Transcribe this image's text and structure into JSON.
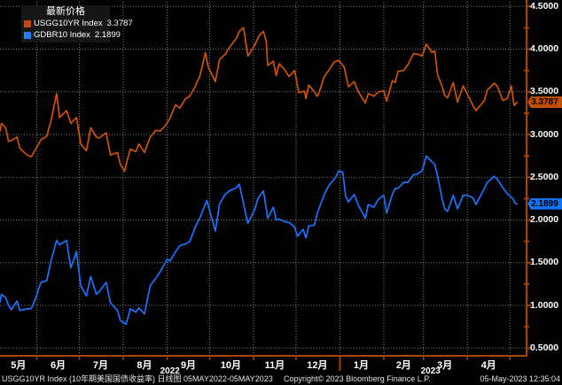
{
  "window": {
    "background": "#000000"
  },
  "legend": {
    "title": "最新价格",
    "items": [
      {
        "label": "USGG10YR Index",
        "value": "3.3787",
        "color": "#c44a04"
      },
      {
        "label": "GDBR10 Index",
        "value": "2.1899",
        "color": "#1e80ff"
      }
    ]
  },
  "footer": {
    "left": "USGG10YR Index (10年期美国国债收益率)  日线图 05MAY2022-05MAY2023",
    "center": "Copyright© 2023 Bloomberg Finance L.P.",
    "right": "05-May-2023 12:35:04"
  },
  "chart_data": {
    "type": "line",
    "title": "最新价格",
    "legend_position": "top-left",
    "grid": true,
    "colors": {
      "axis": "#a84300",
      "grid": "rgba(255,255,255,0.5)",
      "label": "#ffffff"
    },
    "y": {
      "min": 0.5,
      "max": 4.5,
      "step": 0.5,
      "minor_step": 0.25,
      "decimals": 4
    },
    "x": {
      "unit": "days since 2022-05-05",
      "total_days": 368,
      "month_boundaries": [
        26,
        56,
        87,
        118,
        148,
        179,
        209,
        240,
        271,
        299,
        330,
        360
      ],
      "month_labels": [
        {
          "label": "5月",
          "day": 13
        },
        {
          "label": "6月",
          "day": 41
        },
        {
          "label": "7月",
          "day": 71
        },
        {
          "label": "8月",
          "day": 102
        },
        {
          "label": "9月",
          "day": 133
        },
        {
          "label": "10月",
          "day": 163
        },
        {
          "label": "11月",
          "day": 194
        },
        {
          "label": "12月",
          "day": 224
        },
        {
          "label": "1月",
          "day": 255
        },
        {
          "label": "2月",
          "day": 285
        },
        {
          "label": "3月",
          "day": 314
        },
        {
          "label": "4月",
          "day": 345
        }
      ],
      "year_labels": [
        {
          "label": "2022",
          "day": 120
        },
        {
          "label": "2023",
          "day": 304
        }
      ],
      "year_divider_day": 240
    },
    "series": [
      {
        "name": "USGG10YR Index",
        "color": "#cf5208",
        "badge_color": "#c24e00",
        "last": 3.3787,
        "last_label": "3.3787",
        "points": [
          [
            0,
            3.04
          ],
          [
            1,
            3.13
          ],
          [
            4,
            3.08
          ],
          [
            6,
            2.92
          ],
          [
            8,
            2.93
          ],
          [
            12,
            2.97
          ],
          [
            14,
            2.84
          ],
          [
            19,
            2.76
          ],
          [
            22,
            2.74
          ],
          [
            26,
            2.85
          ],
          [
            29,
            2.94
          ],
          [
            33,
            2.98
          ],
          [
            36,
            3.16
          ],
          [
            40,
            3.48
          ],
          [
            42,
            3.2
          ],
          [
            47,
            3.28
          ],
          [
            50,
            3.13
          ],
          [
            54,
            3.2
          ],
          [
            57,
            2.89
          ],
          [
            61,
            2.81
          ],
          [
            64,
            3.08
          ],
          [
            68,
            2.97
          ],
          [
            70,
            2.96
          ],
          [
            75,
            3.02
          ],
          [
            78,
            2.76
          ],
          [
            83,
            2.79
          ],
          [
            85,
            2.65
          ],
          [
            88,
            2.57
          ],
          [
            90,
            2.71
          ],
          [
            92,
            2.83
          ],
          [
            96,
            2.8
          ],
          [
            98,
            2.89
          ],
          [
            102,
            2.79
          ],
          [
            106,
            2.97
          ],
          [
            110,
            3.05
          ],
          [
            113,
            3.04
          ],
          [
            117,
            3.11
          ],
          [
            120,
            3.19
          ],
          [
            124,
            3.35
          ],
          [
            127,
            3.31
          ],
          [
            131,
            3.42
          ],
          [
            134,
            3.45
          ],
          [
            138,
            3.57
          ],
          [
            141,
            3.68
          ],
          [
            145,
            3.96
          ],
          [
            147,
            3.79
          ],
          [
            152,
            3.62
          ],
          [
            155,
            3.88
          ],
          [
            159,
            3.94
          ],
          [
            162,
            4.02
          ],
          [
            167,
            4.13
          ],
          [
            169,
            4.21
          ],
          [
            172,
            4.25
          ],
          [
            175,
            3.92
          ],
          [
            180,
            4.05
          ],
          [
            183,
            4.16
          ],
          [
            186,
            4.21
          ],
          [
            188,
            4.09
          ],
          [
            189,
            3.81
          ],
          [
            193,
            3.86
          ],
          [
            195,
            3.69
          ],
          [
            197,
            3.83
          ],
          [
            201,
            3.76
          ],
          [
            204,
            3.68
          ],
          [
            208,
            3.75
          ],
          [
            211,
            3.49
          ],
          [
            215,
            3.51
          ],
          [
            216,
            3.42
          ],
          [
            218,
            3.58
          ],
          [
            222,
            3.5
          ],
          [
            224,
            3.45
          ],
          [
            225,
            3.48
          ],
          [
            229,
            3.68
          ],
          [
            232,
            3.75
          ],
          [
            236,
            3.85
          ],
          [
            239,
            3.87
          ],
          [
            243,
            3.79
          ],
          [
            246,
            3.56
          ],
          [
            250,
            3.62
          ],
          [
            253,
            3.5
          ],
          [
            258,
            3.37
          ],
          [
            260,
            3.48
          ],
          [
            264,
            3.45
          ],
          [
            267,
            3.5
          ],
          [
            271,
            3.51
          ],
          [
            273,
            3.39
          ],
          [
            277,
            3.63
          ],
          [
            279,
            3.61
          ],
          [
            281,
            3.74
          ],
          [
            285,
            3.75
          ],
          [
            288,
            3.82
          ],
          [
            292,
            3.95
          ],
          [
            295,
            3.94
          ],
          [
            298,
            3.92
          ],
          [
            301,
            4.06
          ],
          [
            305,
            3.96
          ],
          [
            307,
            3.98
          ],
          [
            309,
            3.7
          ],
          [
            312,
            3.57
          ],
          [
            314,
            3.46
          ],
          [
            316,
            3.43
          ],
          [
            320,
            3.61
          ],
          [
            323,
            3.38
          ],
          [
            327,
            3.57
          ],
          [
            330,
            3.47
          ],
          [
            334,
            3.34
          ],
          [
            336,
            3.28
          ],
          [
            342,
            3.4
          ],
          [
            344,
            3.52
          ],
          [
            349,
            3.6
          ],
          [
            351,
            3.57
          ],
          [
            355,
            3.4
          ],
          [
            358,
            3.42
          ],
          [
            361,
            3.57
          ],
          [
            363,
            3.34
          ],
          [
            365,
            3.3787
          ]
        ]
      },
      {
        "name": "GDBR10 Index",
        "color": "#1874ff",
        "badge_color": "#1270f5",
        "last": 2.1899,
        "last_label": "2.1899",
        "points": [
          [
            0,
            1.04
          ],
          [
            1,
            1.13
          ],
          [
            4,
            1.09
          ],
          [
            6,
            1.0
          ],
          [
            8,
            0.95
          ],
          [
            12,
            1.05
          ],
          [
            14,
            0.94
          ],
          [
            19,
            0.96
          ],
          [
            22,
            0.96
          ],
          [
            26,
            1.12
          ],
          [
            27,
            1.18
          ],
          [
            29,
            1.27
          ],
          [
            33,
            1.29
          ],
          [
            36,
            1.52
          ],
          [
            40,
            1.76
          ],
          [
            42,
            1.71
          ],
          [
            47,
            1.76
          ],
          [
            50,
            1.44
          ],
          [
            54,
            1.63
          ],
          [
            57,
            1.23
          ],
          [
            61,
            1.11
          ],
          [
            64,
            1.34
          ],
          [
            68,
            1.13
          ],
          [
            70,
            1.16
          ],
          [
            75,
            1.27
          ],
          [
            78,
            1.03
          ],
          [
            83,
            0.94
          ],
          [
            85,
            0.82
          ],
          [
            89,
            0.78
          ],
          [
            92,
            0.96
          ],
          [
            96,
            0.92
          ],
          [
            98,
            0.97
          ],
          [
            102,
            0.9
          ],
          [
            106,
            1.23
          ],
          [
            110,
            1.32
          ],
          [
            113,
            1.39
          ],
          [
            118,
            1.54
          ],
          [
            120,
            1.52
          ],
          [
            124,
            1.63
          ],
          [
            127,
            1.7
          ],
          [
            131,
            1.72
          ],
          [
            134,
            1.75
          ],
          [
            138,
            1.92
          ],
          [
            141,
            2.02
          ],
          [
            146,
            2.23
          ],
          [
            148,
            2.11
          ],
          [
            152,
            1.87
          ],
          [
            155,
            2.19
          ],
          [
            159,
            2.3
          ],
          [
            162,
            2.34
          ],
          [
            167,
            2.38
          ],
          [
            169,
            2.42
          ],
          [
            175,
            1.96
          ],
          [
            180,
            2.13
          ],
          [
            182,
            2.25
          ],
          [
            186,
            2.34
          ],
          [
            189,
            2.02
          ],
          [
            193,
            2.15
          ],
          [
            195,
            2.0
          ],
          [
            197,
            2.01
          ],
          [
            201,
            1.98
          ],
          [
            204,
            1.97
          ],
          [
            208,
            1.92
          ],
          [
            210,
            1.81
          ],
          [
            214,
            1.89
          ],
          [
            216,
            1.79
          ],
          [
            218,
            1.93
          ],
          [
            222,
            1.94
          ],
          [
            224,
            2.08
          ],
          [
            229,
            2.3
          ],
          [
            232,
            2.4
          ],
          [
            237,
            2.5
          ],
          [
            239,
            2.57
          ],
          [
            242,
            2.56
          ],
          [
            244,
            2.28
          ],
          [
            246,
            2.21
          ],
          [
            250,
            2.3
          ],
          [
            253,
            2.17
          ],
          [
            258,
            2.02
          ],
          [
            260,
            2.18
          ],
          [
            264,
            2.15
          ],
          [
            267,
            2.24
          ],
          [
            271,
            2.29
          ],
          [
            273,
            2.08
          ],
          [
            277,
            2.3
          ],
          [
            279,
            2.37
          ],
          [
            281,
            2.37
          ],
          [
            285,
            2.44
          ],
          [
            288,
            2.44
          ],
          [
            292,
            2.53
          ],
          [
            295,
            2.54
          ],
          [
            298,
            2.58
          ],
          [
            301,
            2.75
          ],
          [
            305,
            2.68
          ],
          [
            307,
            2.65
          ],
          [
            309,
            2.51
          ],
          [
            312,
            2.26
          ],
          [
            314,
            2.13
          ],
          [
            316,
            2.1
          ],
          [
            320,
            2.29
          ],
          [
            323,
            2.13
          ],
          [
            327,
            2.29
          ],
          [
            330,
            2.29
          ],
          [
            334,
            2.26
          ],
          [
            336,
            2.18
          ],
          [
            342,
            2.37
          ],
          [
            344,
            2.44
          ],
          [
            349,
            2.51
          ],
          [
            351,
            2.48
          ],
          [
            355,
            2.38
          ],
          [
            358,
            2.31
          ],
          [
            362,
            2.25
          ],
          [
            364,
            2.19
          ],
          [
            365,
            2.1899
          ]
        ]
      }
    ]
  }
}
